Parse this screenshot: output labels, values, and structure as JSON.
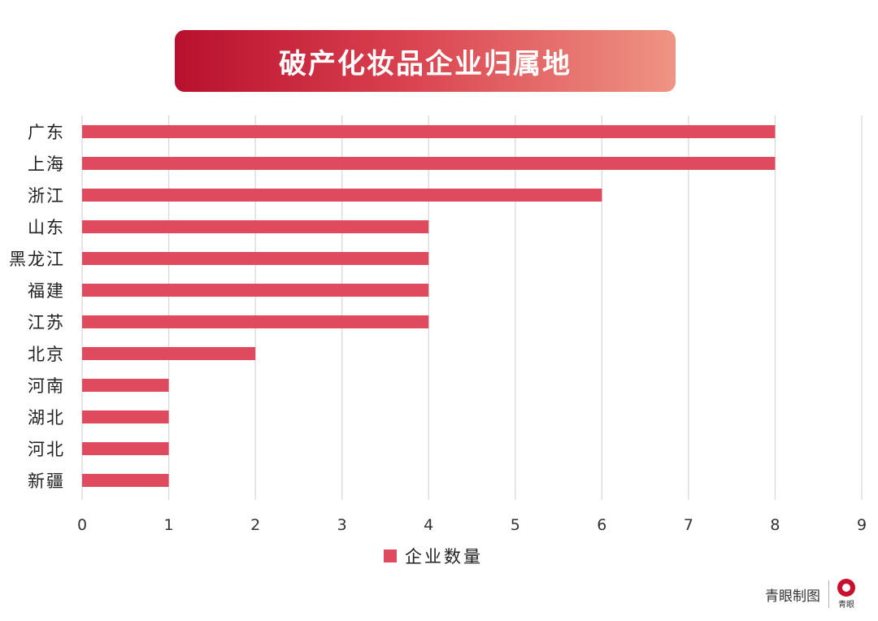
{
  "chart_data": {
    "type": "bar",
    "orientation": "horizontal",
    "title": "破产化妆品企业归属地",
    "categories": [
      "广东",
      "上海",
      "浙江",
      "山东",
      "黑龙江",
      "福建",
      "江苏",
      "北京",
      "河南",
      "湖北",
      "河北",
      "新疆"
    ],
    "series": [
      {
        "name": "企业数量",
        "values": [
          8,
          8,
          6,
          4,
          4,
          4,
          4,
          2,
          1,
          1,
          1,
          1
        ],
        "color": "#e04a5e"
      }
    ],
    "xlim": [
      0,
      9
    ],
    "xticks": [
      "0",
      "1",
      "2",
      "3",
      "4",
      "5",
      "6",
      "7",
      "8",
      "9"
    ],
    "grid": "vertical",
    "legend": "bottom-center"
  },
  "footer": {
    "credit": "青眼制图",
    "logo_text": "青眼",
    "logo_icon": "eye-logo-icon"
  },
  "colors": {
    "bar": "#e04a5e",
    "title_gradient_start": "#b8102e",
    "title_gradient_end": "#ef9484",
    "grid": "#d9d9d9"
  }
}
